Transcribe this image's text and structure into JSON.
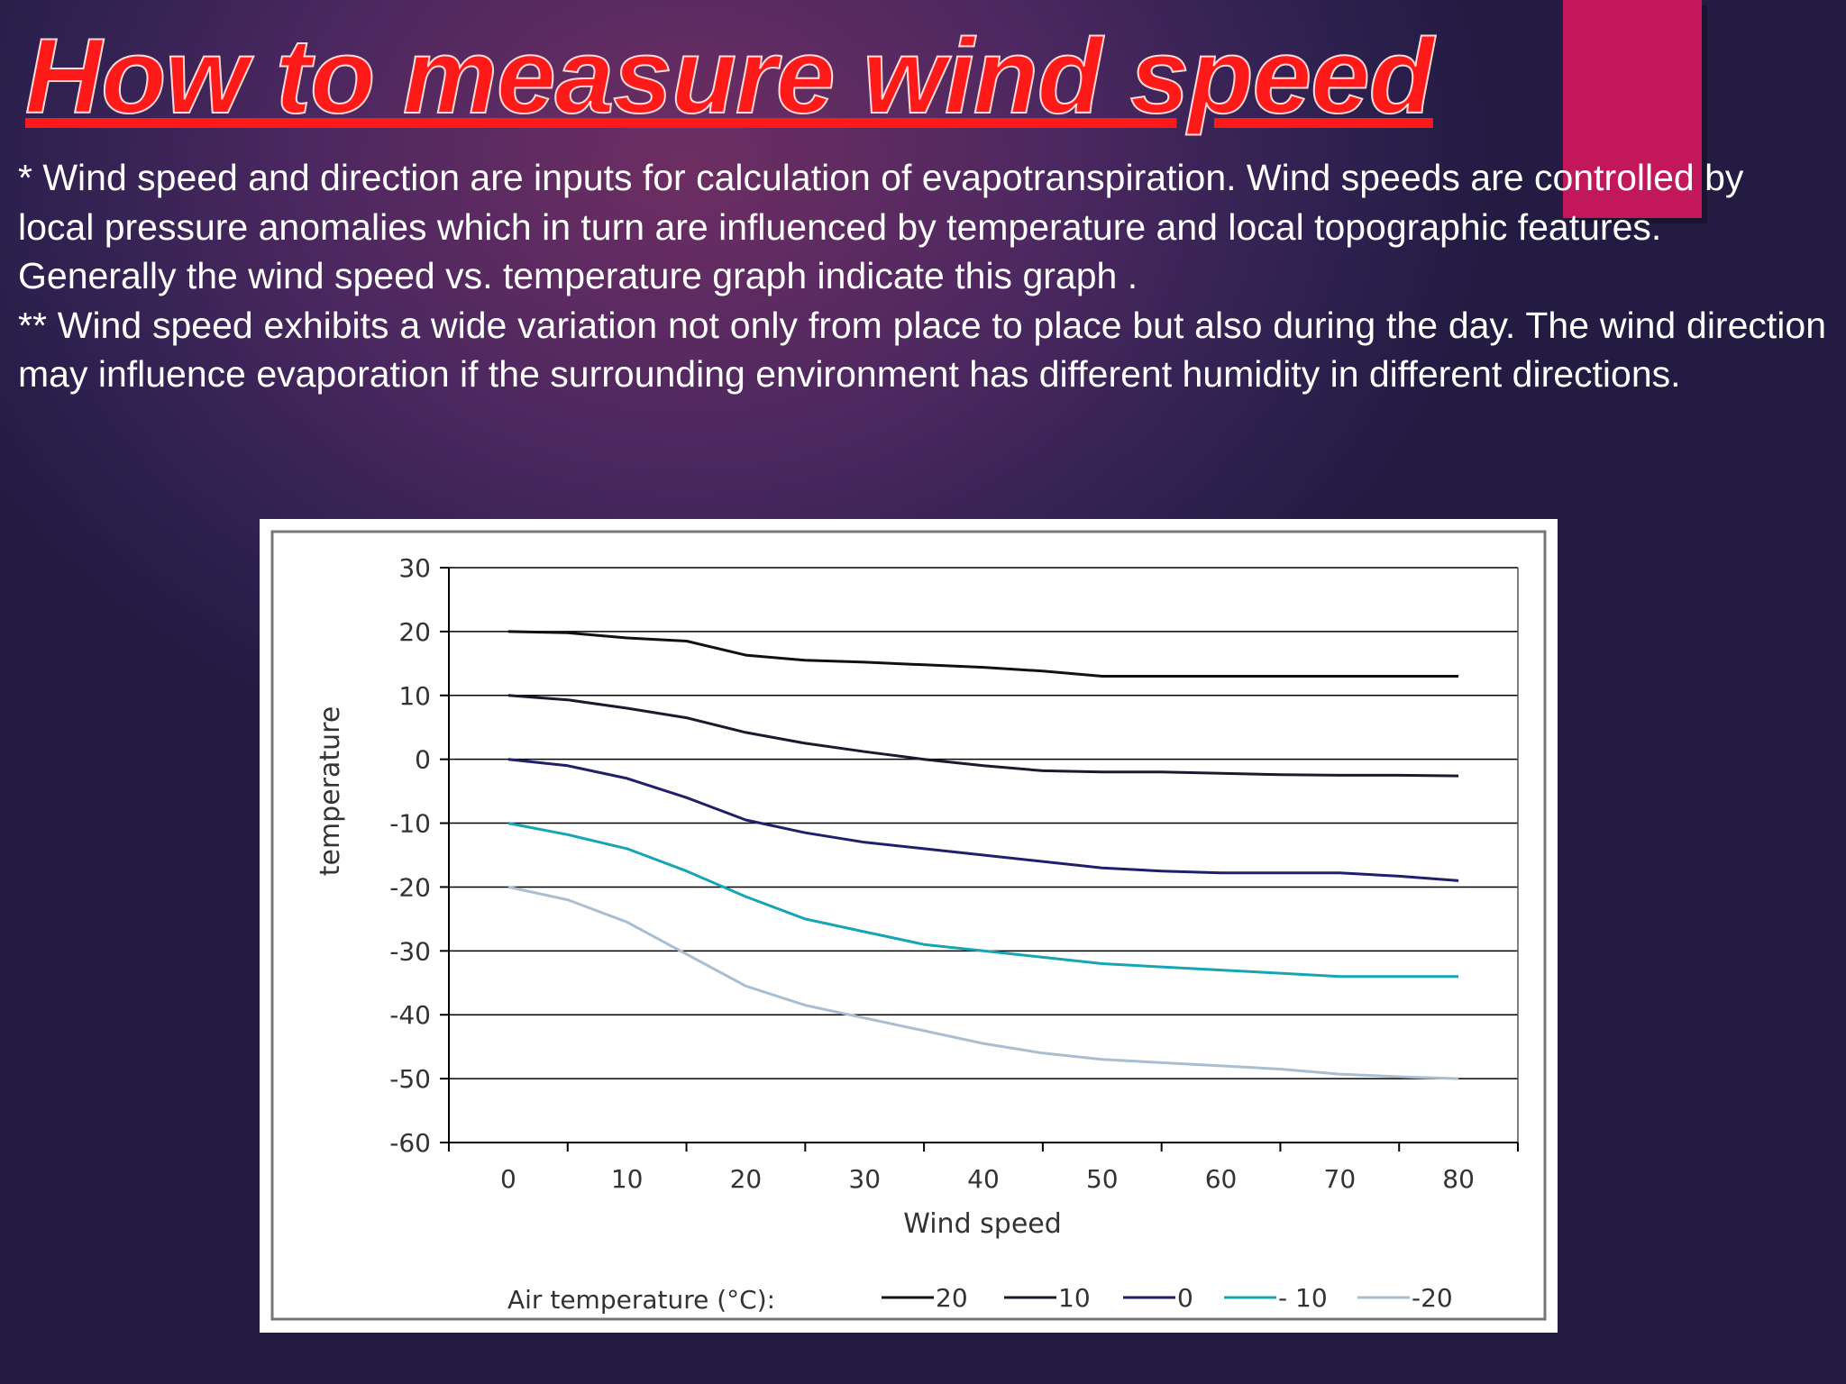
{
  "slide": {
    "title": "How to measure wind speed",
    "paragraphs": [
      "* Wind speed and direction are inputs for calculation of evapotranspiration. Wind speeds are controlled by local pressure anomalies which in turn are influenced by temperature and local topographic features.",
      "Generally the wind speed vs. temperature graph indicate this graph .",
      "** Wind speed exhibits a wide variation not only from place to place but also during the day. The wind direction may influence evaporation if the surrounding environment has different humidity in different directions."
    ],
    "colors": {
      "title": "#ff1a1a",
      "accent_bar": "#c2185b",
      "text": "#ffffff"
    }
  },
  "chart_data": {
    "type": "line",
    "title": "",
    "xlabel": "Wind speed",
    "ylabel": "temperature",
    "xlim": [
      -5,
      85
    ],
    "ylim": [
      -60,
      30
    ],
    "xticks": [
      0,
      10,
      20,
      30,
      40,
      50,
      60,
      70,
      80
    ],
    "yticks": [
      30,
      20,
      10,
      0,
      -10,
      -20,
      -30,
      -40,
      -50,
      -60
    ],
    "grid": "horizontal",
    "legend_title": "Air temperature (°C):",
    "legend_position": "bottom",
    "x": [
      0,
      5,
      10,
      15,
      20,
      25,
      30,
      35,
      40,
      45,
      50,
      55,
      60,
      65,
      70,
      75,
      80
    ],
    "series": [
      {
        "name": "20",
        "color": "#111111",
        "values": [
          20,
          19.8,
          19,
          18.5,
          16.3,
          15.5,
          15.2,
          14.8,
          14.4,
          13.8,
          13,
          13,
          13,
          13,
          13,
          13,
          13
        ]
      },
      {
        "name": "10",
        "color": "#1a1a2e",
        "values": [
          10,
          9.3,
          8,
          6.5,
          4.2,
          2.5,
          1.2,
          0,
          -1,
          -1.8,
          -2,
          -2,
          -2.2,
          -2.4,
          -2.5,
          -2.5,
          -2.6
        ]
      },
      {
        "name": "0",
        "color": "#1f1f6b",
        "values": [
          0,
          -1,
          -3,
          -6,
          -9.5,
          -11.5,
          -13,
          -14,
          -15,
          -16,
          -17,
          -17.5,
          -17.8,
          -17.8,
          -17.8,
          -18.3,
          -19
        ]
      },
      {
        "name": "- 10",
        "color": "#17a5b5",
        "values": [
          -10,
          -11.8,
          -14,
          -17.5,
          -21.5,
          -25,
          -27,
          -29,
          -30,
          -31,
          -32,
          -32.5,
          -33,
          -33.5,
          -34,
          -34,
          -34
        ]
      },
      {
        "name": "-20",
        "color": "#a9bfd1",
        "values": [
          -20,
          -22,
          -25.5,
          -30.5,
          -35.5,
          -38.5,
          -40.5,
          -42.5,
          -44.5,
          -46,
          -47,
          -47.5,
          -48,
          -48.5,
          -49.3,
          -49.7,
          -50
        ]
      }
    ]
  }
}
